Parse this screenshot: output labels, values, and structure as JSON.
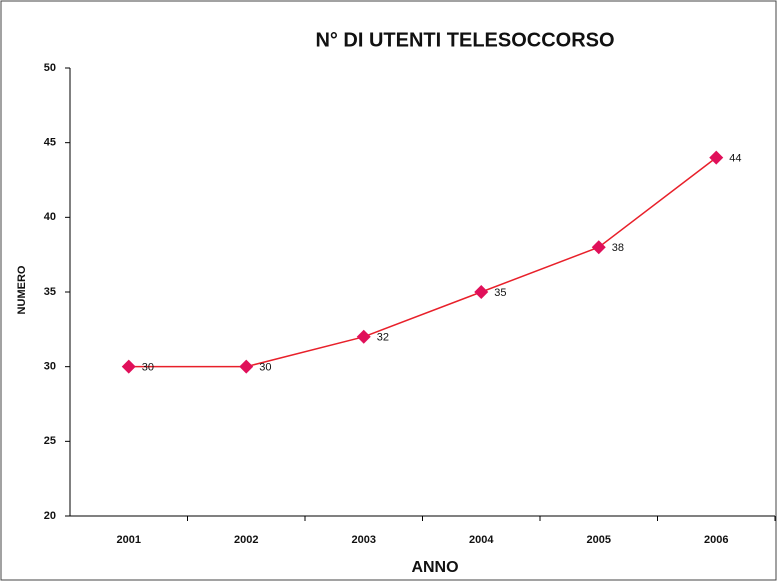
{
  "chart_data": {
    "type": "line",
    "title": "N° DI UTENTI TELESOCCORSO",
    "x_label": "ANNO",
    "y_label": "NUMERO",
    "categories": [
      "2001",
      "2002",
      "2003",
      "2004",
      "2005",
      "2006"
    ],
    "values": [
      30,
      30,
      32,
      35,
      38,
      44
    ],
    "color": "#e8202a",
    "marker_color": "#e0105a",
    "ylim": [
      20,
      50
    ],
    "yticks": [
      20,
      25,
      30,
      35,
      40,
      45,
      50
    ],
    "grid": false
  }
}
